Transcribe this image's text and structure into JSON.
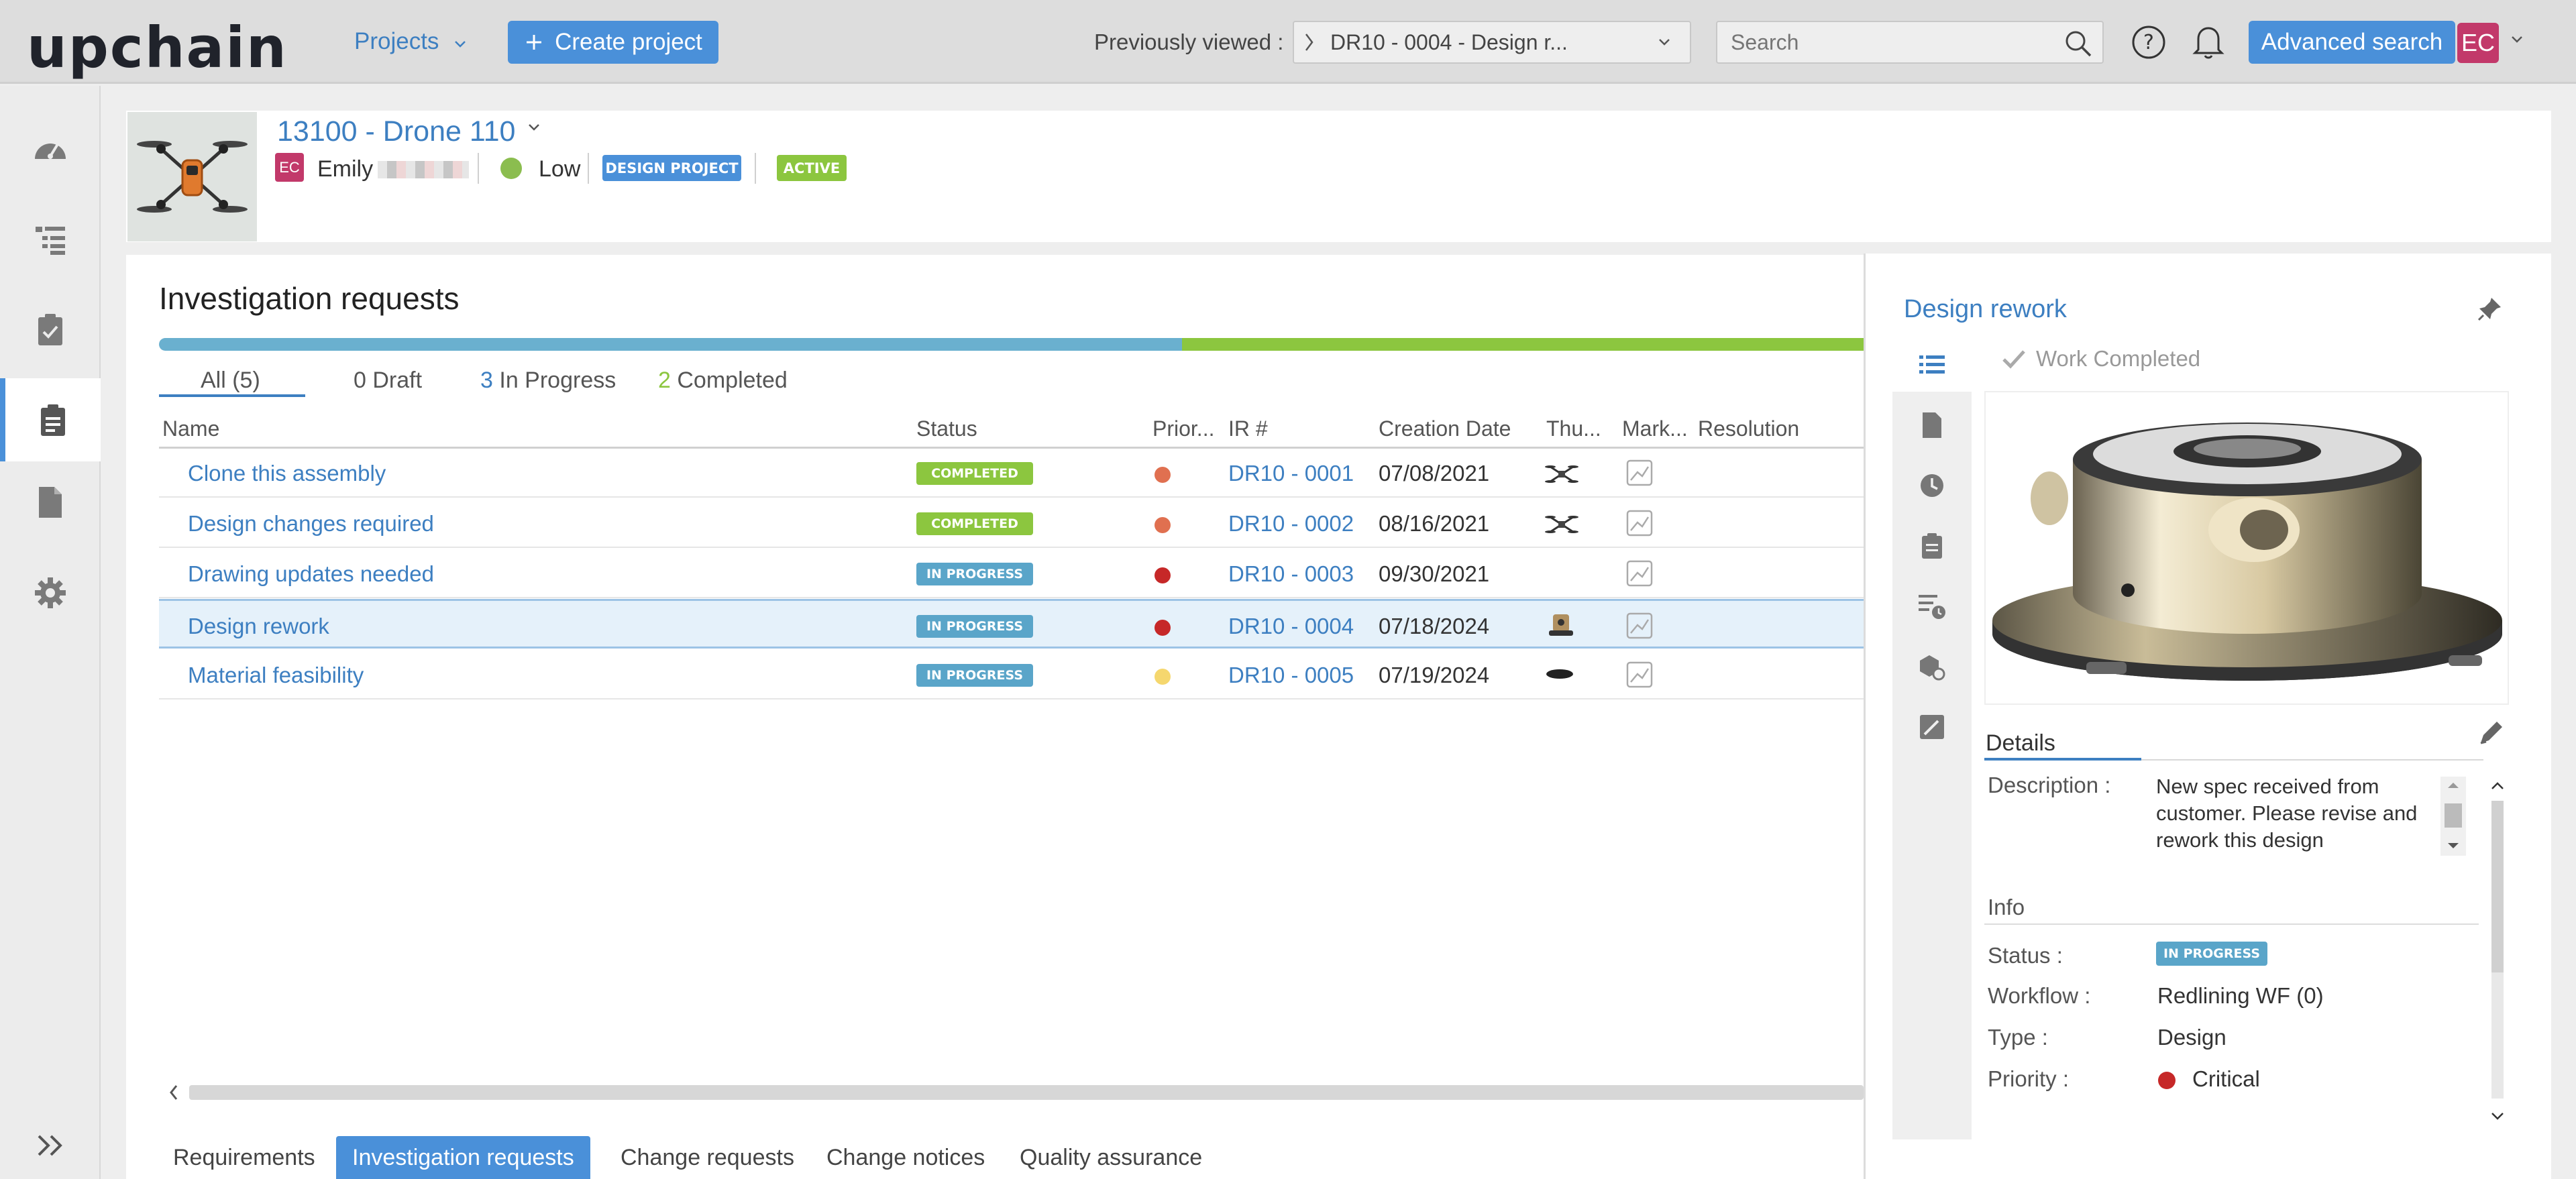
{
  "app": {
    "logo": "upchain",
    "colors": {
      "accent": "#4a90d9",
      "completed": "#8cc63f",
      "in_progress": "#5aa5c9",
      "critical": "#c62828"
    }
  },
  "topbar": {
    "projects_label": "Projects",
    "create_project_label": "Create project",
    "previously_viewed_label": "Previously viewed :",
    "previously_viewed_value": "DR10 - 0004 - Design r...",
    "search_placeholder": "Search",
    "advanced_search_label": "Advanced search",
    "avatar_initials": "EC"
  },
  "sidebar": {
    "items": [
      {
        "icon": "dashboard-icon"
      },
      {
        "icon": "tree-list-icon"
      },
      {
        "icon": "checklist-icon"
      },
      {
        "icon": "clipboard-icon",
        "active": true
      },
      {
        "icon": "document-icon"
      },
      {
        "icon": "gear-icon"
      }
    ],
    "expand_icon": "double-chevron-right-icon"
  },
  "project": {
    "title": "13100 - Drone 110",
    "owner_initials": "EC",
    "owner_name": "Emily",
    "priority": "Low",
    "type_badge": "DESIGN PROJECT",
    "status_badge": "ACTIVE"
  },
  "main": {
    "title": "Investigation requests",
    "progress": {
      "in_progress_fraction": 0.6,
      "completed_fraction": 0.4
    },
    "filters": [
      {
        "count": "",
        "label": "All (5)"
      },
      {
        "count": "0",
        "label": "Draft"
      },
      {
        "count": "3",
        "label": "In Progress"
      },
      {
        "count": "2",
        "label": "Completed"
      }
    ],
    "columns": [
      "Name",
      "Status",
      "Prior...",
      "IR #",
      "Creation Date",
      "Thu...",
      "Mark...",
      "Resolution"
    ],
    "rows": [
      {
        "name": "Clone this assembly",
        "status": "COMPLETED",
        "priority_color": "#e07050",
        "ir": "DR10 - 0001",
        "date": "07/08/2021"
      },
      {
        "name": "Design changes required",
        "status": "COMPLETED",
        "priority_color": "#e07050",
        "ir": "DR10 - 0002",
        "date": "08/16/2021"
      },
      {
        "name": "Drawing updates needed",
        "status": "IN PROGRESS",
        "priority_color": "#c62828",
        "ir": "DR10 - 0003",
        "date": "09/30/2021"
      },
      {
        "name": "Design rework",
        "status": "IN PROGRESS",
        "priority_color": "#c62828",
        "ir": "DR10 - 0004",
        "date": "07/18/2024"
      },
      {
        "name": "Material feasibility",
        "status": "IN PROGRESS",
        "priority_color": "#f5d76e",
        "ir": "DR10 - 0005",
        "date": "07/19/2024"
      }
    ]
  },
  "bottom_tabs": [
    {
      "label": "Requirements"
    },
    {
      "label": "Investigation requests",
      "active": true
    },
    {
      "label": "Change requests"
    },
    {
      "label": "Change notices"
    },
    {
      "label": "Quality assurance"
    }
  ],
  "detail": {
    "title": "Design rework",
    "work_completed_label": "Work Completed",
    "details_label": "Details",
    "description_label": "Description :",
    "description_value": "New spec received from customer. Please revise and rework this design",
    "info_label": "Info",
    "status_label": "Status :",
    "status_value": "IN PROGRESS",
    "workflow_label": "Workflow :",
    "workflow_value": "Redlining WF (0)",
    "type_label": "Type :",
    "type_value": "Design",
    "priority_label": "Priority :",
    "priority_value": "Critical"
  }
}
